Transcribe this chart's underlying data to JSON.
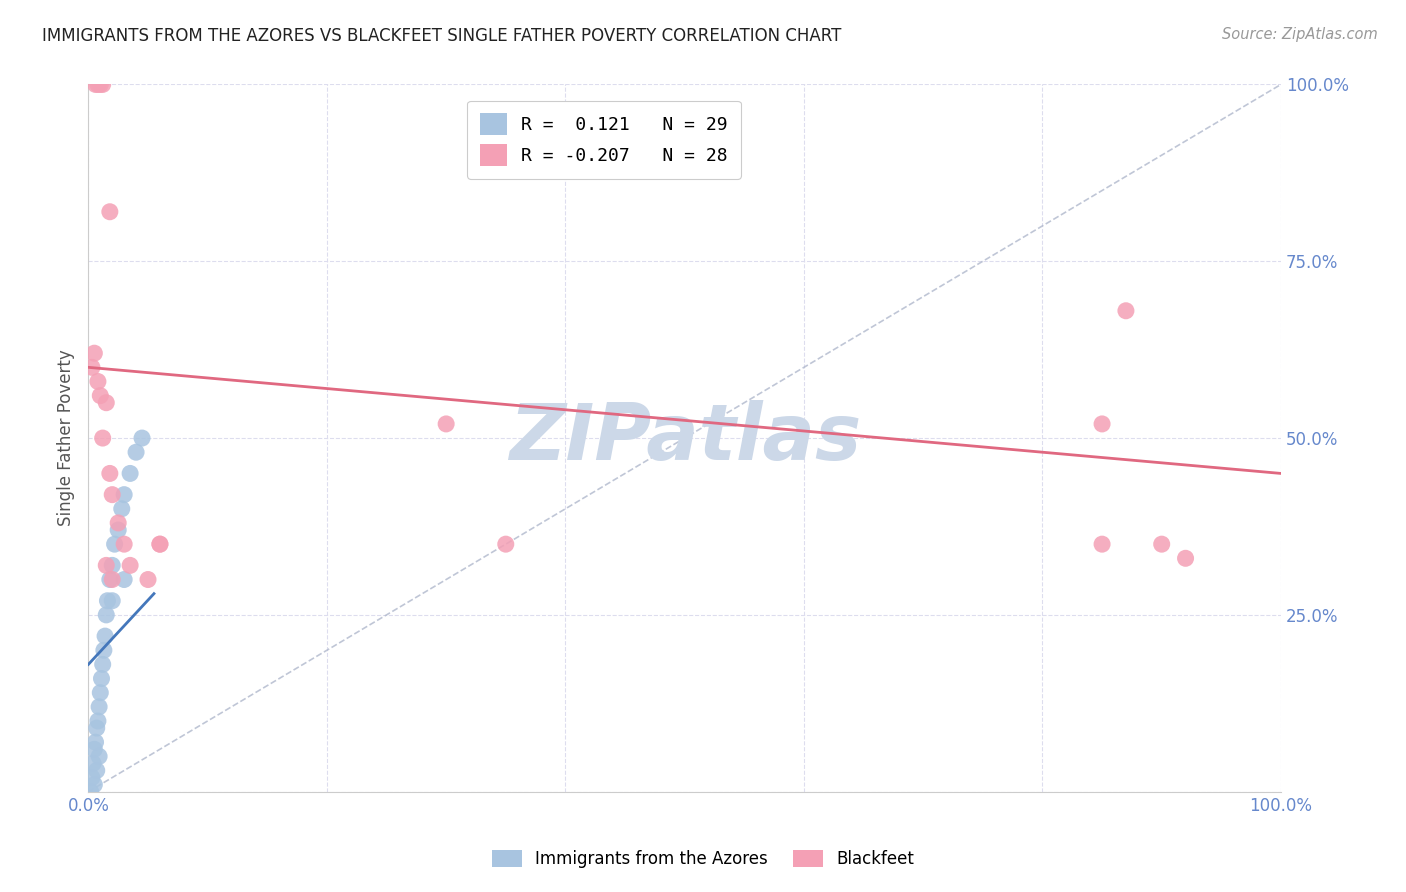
{
  "title": "IMMIGRANTS FROM THE AZORES VS BLACKFEET SINGLE FATHER POVERTY CORRELATION CHART",
  "source": "Source: ZipAtlas.com",
  "ylabel": "Single Father Poverty",
  "xlim": [
    0,
    1.0
  ],
  "ylim": [
    0,
    1.0
  ],
  "blue_R": 0.121,
  "blue_N": 29,
  "pink_R": -0.207,
  "pink_N": 28,
  "blue_color": "#a8c4e0",
  "pink_color": "#f4a0b5",
  "blue_line_color": "#4477bb",
  "pink_line_color": "#e06880",
  "diag_color": "#b0b8cc",
  "watermark": "ZIPatlas",
  "watermark_color": "#ccd8e8",
  "legend_label_blue": "Immigrants from the Azores",
  "legend_label_pink": "Blackfeet",
  "blue_x": [
    0.002,
    0.003,
    0.004,
    0.005,
    0.006,
    0.007,
    0.008,
    0.009,
    0.01,
    0.011,
    0.012,
    0.013,
    0.014,
    0.015,
    0.016,
    0.018,
    0.02,
    0.022,
    0.025,
    0.028,
    0.03,
    0.035,
    0.04,
    0.045,
    0.005,
    0.007,
    0.009,
    0.02,
    0.03
  ],
  "blue_y": [
    0.0,
    0.02,
    0.04,
    0.06,
    0.07,
    0.09,
    0.1,
    0.12,
    0.14,
    0.16,
    0.18,
    0.2,
    0.22,
    0.25,
    0.27,
    0.3,
    0.32,
    0.35,
    0.37,
    0.4,
    0.42,
    0.45,
    0.48,
    0.5,
    0.01,
    0.03,
    0.05,
    0.27,
    0.3
  ],
  "pink_x": [
    0.003,
    0.005,
    0.008,
    0.01,
    0.012,
    0.015,
    0.018,
    0.02,
    0.025,
    0.03,
    0.035,
    0.05,
    0.06,
    0.015,
    0.02,
    0.85,
    0.9,
    0.92,
    0.87,
    0.85,
    0.35,
    0.3,
    0.06,
    0.006,
    0.008,
    0.01,
    0.012,
    0.018
  ],
  "pink_y": [
    0.6,
    0.62,
    0.58,
    0.56,
    0.5,
    0.55,
    0.45,
    0.42,
    0.38,
    0.35,
    0.32,
    0.3,
    0.35,
    0.32,
    0.3,
    0.35,
    0.35,
    0.33,
    0.68,
    0.52,
    0.35,
    0.52,
    0.35,
    1.0,
    1.0,
    1.0,
    1.0,
    0.82
  ],
  "blue_line_x": [
    0.0,
    0.055
  ],
  "blue_line_y_start": 0.18,
  "blue_line_y_end": 0.28,
  "pink_line_x": [
    0.0,
    1.0
  ],
  "pink_line_y_start": 0.6,
  "pink_line_y_end": 0.45
}
